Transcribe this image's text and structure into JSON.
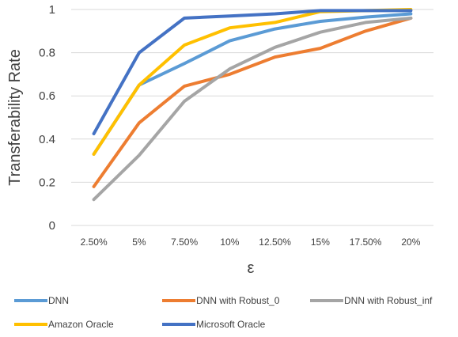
{
  "chart_data": {
    "type": "line",
    "title": "",
    "xlabel": "ε",
    "ylabel": "Transferability Rate",
    "categories": [
      "2.50%",
      "5%",
      "7.50%",
      "10%",
      "12.50%",
      "15%",
      "17.50%",
      "20%"
    ],
    "ylim": [
      0,
      1
    ],
    "yticks": [
      "0",
      "0.2",
      "0.4",
      "0.6",
      "0.8",
      "1"
    ],
    "grid": "horizontal",
    "legend_position": "bottom",
    "series": [
      {
        "name": "DNN",
        "color": "#5B9BD5",
        "values": [
          0.33,
          0.65,
          0.75,
          0.855,
          0.91,
          0.945,
          0.965,
          0.98
        ]
      },
      {
        "name": "DNN with Robust_0",
        "color": "#ED7D31",
        "values": [
          0.18,
          0.475,
          0.645,
          0.7,
          0.78,
          0.82,
          0.9,
          0.96
        ]
      },
      {
        "name": "DNN with Robust_inf",
        "color": "#A5A5A5",
        "values": [
          0.12,
          0.325,
          0.575,
          0.725,
          0.825,
          0.895,
          0.94,
          0.96
        ]
      },
      {
        "name": "Amazon Oracle",
        "color": "#FFC000",
        "values": [
          0.33,
          0.65,
          0.835,
          0.915,
          0.94,
          0.99,
          0.995,
          1.0
        ]
      },
      {
        "name": "Microsoft Oracle",
        "color": "#4472C4",
        "values": [
          0.425,
          0.8,
          0.96,
          0.97,
          0.98,
          0.995,
          0.995,
          0.995
        ]
      }
    ]
  }
}
